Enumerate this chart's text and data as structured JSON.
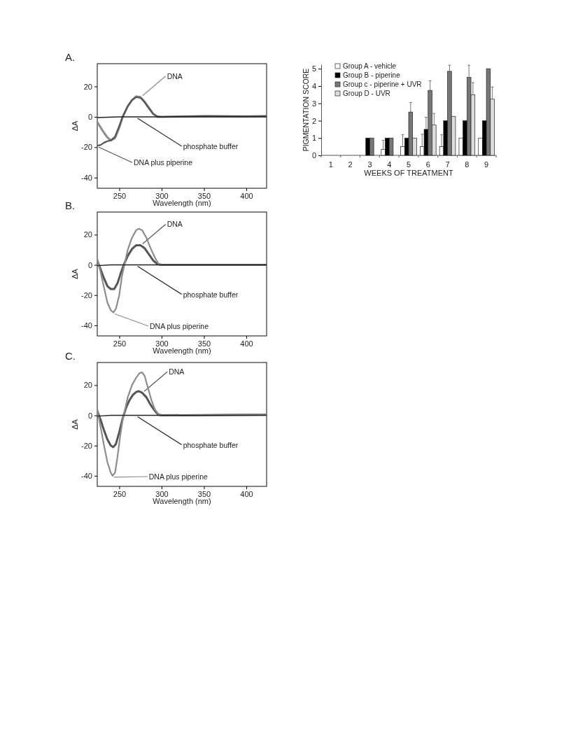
{
  "chart_data": [
    {
      "type": "line",
      "title": "A.",
      "xlabel": "Wavelength (nm)",
      "ylabel": "ΔA",
      "xlim": [
        224,
        424
      ],
      "ylim": [
        -47,
        35
      ],
      "xticks": [
        250,
        300,
        350,
        400
      ],
      "yticks": [
        -40,
        -20,
        0,
        20
      ],
      "series": [
        {
          "name": "DNA",
          "color": "#8c8c8c",
          "x": [
            224,
            228,
            232,
            236,
            240,
            245,
            250,
            254,
            260,
            265,
            270,
            275,
            280,
            285,
            290,
            295,
            300,
            350,
            400,
            424
          ],
          "values": [
            -3.4,
            -7,
            -10.5,
            -13.5,
            -15.5,
            -14,
            -7,
            0,
            7,
            11,
            13.5,
            13,
            10,
            6,
            2,
            0,
            0,
            0.5,
            0.3,
            0.5
          ]
        },
        {
          "name": "DNA plus piperine",
          "color": "#555555",
          "x": [
            224,
            228,
            232,
            236,
            240,
            245,
            250,
            254,
            260,
            265,
            270,
            275,
            280,
            285,
            290,
            295,
            300,
            350,
            360,
            400,
            424
          ],
          "values": [
            -19,
            -18.5,
            -17,
            -16,
            -15.5,
            -13,
            -6,
            0,
            7,
            11,
            13,
            12.5,
            9.5,
            5.5,
            2,
            0.3,
            0,
            0.5,
            0.5,
            0.3,
            0.5
          ]
        },
        {
          "name": "phosphate buffer",
          "color": "#222222",
          "x": [
            224,
            250,
            270,
            300,
            424
          ],
          "values": [
            -0.5,
            0,
            0,
            0,
            0
          ]
        }
      ]
    },
    {
      "type": "bar",
      "xlabel": "WEEKS OF TREATMENT",
      "ylabel": "PIGMENTATION SCORE",
      "categories": [
        "1",
        "2",
        "3",
        "4",
        "5",
        "6",
        "7",
        "8",
        "9"
      ],
      "ylim": [
        0,
        5.25
      ],
      "yticks": [
        0,
        1,
        2,
        3,
        4,
        5
      ],
      "legend": "top left",
      "series": [
        {
          "name": "Group A - vehicle",
          "color": "#ffffff",
          "values": [
            0,
            0,
            0,
            0.35,
            0.5,
            0.5,
            0.5,
            1,
            1
          ],
          "errors": [
            null,
            null,
            null,
            [
              0.35,
              0.87
            ],
            [
              0.5,
              1.2
            ],
            [
              0.5,
              1.22
            ],
            [
              0.5,
              1.2
            ],
            null,
            null
          ]
        },
        {
          "name": "Group B - piperine",
          "color": "#000000",
          "values": [
            0,
            0,
            1,
            1,
            1,
            1.5,
            2,
            2,
            2
          ],
          "errors": [
            null,
            null,
            null,
            null,
            null,
            [
              1.5,
              2.2
            ],
            null,
            null,
            null
          ]
        },
        {
          "name": "Group c - piperine + UVR",
          "color": "#777777",
          "values": [
            0,
            0,
            1,
            1,
            2.5,
            3.75,
            4.85,
            4.5,
            5
          ],
          "errors": [
            null,
            null,
            null,
            null,
            [
              2.5,
              3.05
            ],
            [
              3.75,
              4.3
            ],
            [
              4.85,
              5.2
            ],
            [
              4.5,
              5.2
            ],
            null
          ]
        },
        {
          "name": "Group D - UVR",
          "color": "#dddddd",
          "values": [
            0,
            0,
            0,
            0,
            1,
            1.75,
            2.25,
            3.5,
            3.25
          ],
          "errors": [
            null,
            null,
            null,
            null,
            null,
            [
              1.75,
              2.42
            ],
            null,
            [
              3.5,
              4.2
            ],
            [
              3.25,
              3.95
            ]
          ]
        }
      ]
    },
    {
      "type": "line",
      "title": "B.",
      "xlabel": "Wavelength (nm)",
      "ylabel": "ΔA",
      "xlim": [
        224,
        424
      ],
      "ylim": [
        -47,
        35
      ],
      "xticks": [
        250,
        300,
        350,
        400
      ],
      "yticks": [
        -40,
        -20,
        0,
        20
      ],
      "series": [
        {
          "name": "DNA",
          "color": "#555555",
          "x": [
            224,
            228,
            232,
            236,
            240,
            244,
            248,
            252,
            256,
            260,
            265,
            270,
            275,
            280,
            285,
            290,
            295,
            300,
            350,
            424
          ],
          "values": [
            3,
            -3,
            -9,
            -14,
            -16,
            -16,
            -12,
            -5,
            1,
            6,
            10.5,
            13,
            13,
            11,
            7,
            3,
            0.5,
            0,
            0,
            0
          ]
        },
        {
          "name": "DNA plus piperine",
          "color": "#8c8c8c",
          "x": [
            224,
            228,
            232,
            236,
            240,
            243,
            246,
            250,
            253,
            256,
            260,
            265,
            270,
            273,
            277,
            282,
            287,
            292,
            296,
            300,
            350,
            424
          ],
          "values": [
            4,
            -5,
            -15,
            -25,
            -30,
            -31.5,
            -29,
            -20,
            -8,
            0,
            10,
            18,
            23,
            24,
            23,
            18,
            11,
            5,
            1,
            0,
            0,
            0
          ]
        },
        {
          "name": "phosphate buffer",
          "color": "#222222",
          "x": [
            224,
            240,
            270,
            300,
            424
          ],
          "values": [
            -0.5,
            0,
            0,
            0,
            0
          ]
        }
      ]
    },
    {
      "type": "line",
      "title": "C.",
      "xlabel": "Wavelength (nm)",
      "ylabel": "ΔA",
      "xlim": [
        224,
        424
      ],
      "ylim": [
        -47,
        35
      ],
      "xticks": [
        250,
        300,
        350,
        400
      ],
      "yticks": [
        -40,
        -20,
        0,
        20
      ],
      "series": [
        {
          "name": "DNA",
          "color": "#555555",
          "x": [
            224,
            228,
            232,
            236,
            240,
            243,
            246,
            250,
            254,
            258,
            262,
            266,
            270,
            273,
            277,
            282,
            287,
            292,
            296,
            300,
            424
          ],
          "values": [
            3,
            -3,
            -10,
            -16,
            -20,
            -21,
            -19,
            -11,
            -2,
            5,
            10,
            13.5,
            15.5,
            16,
            15,
            12,
            7,
            3,
            0.5,
            0,
            0.5
          ]
        },
        {
          "name": "DNA plus piperine",
          "color": "#8c8c8c",
          "x": [
            224,
            228,
            232,
            236,
            240,
            242,
            245,
            248,
            251,
            254,
            256,
            260,
            265,
            270,
            274,
            277,
            280,
            284,
            288,
            292,
            296,
            300,
            424
          ],
          "values": [
            4,
            -8,
            -20,
            -31,
            -38,
            -40,
            -38,
            -27,
            -14,
            -3,
            2,
            12,
            20,
            25,
            28,
            28.5,
            26,
            18,
            10,
            4,
            1,
            0,
            0.5
          ]
        },
        {
          "name": "phosphate buffer",
          "color": "#222222",
          "x": [
            224,
            240,
            270,
            300,
            424
          ],
          "values": [
            -0.5,
            0,
            0,
            0,
            0
          ]
        }
      ]
    }
  ]
}
